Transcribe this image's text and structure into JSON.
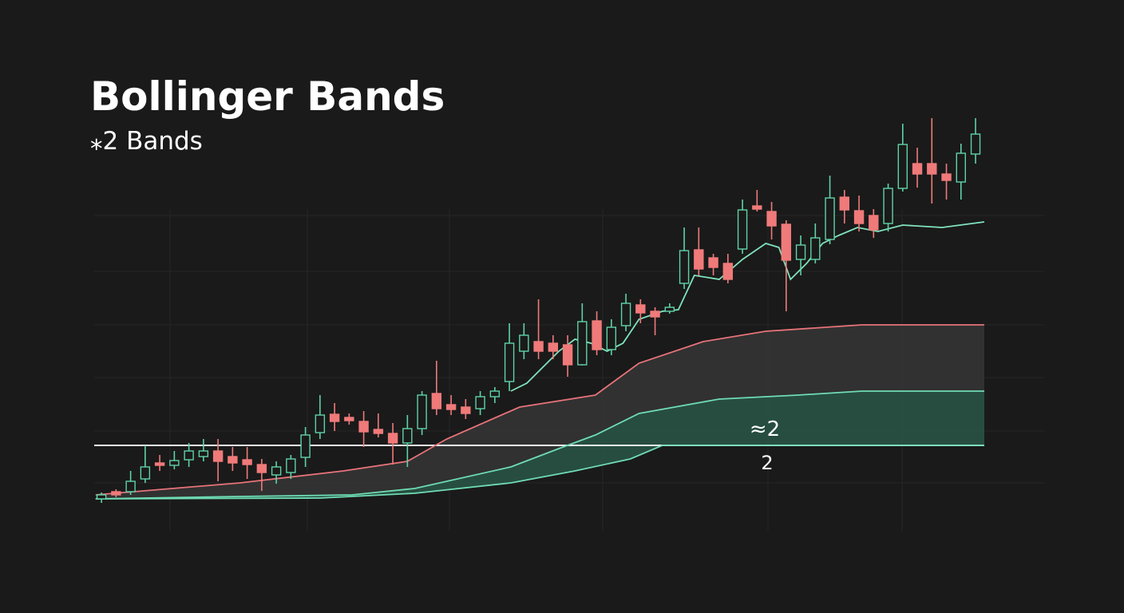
{
  "chart_data": {
    "type": "candlestick",
    "title": "Bollinger Bands",
    "subtitle": "⁎2 Bands",
    "xlim": [
      -0.5,
      60.6
    ],
    "ylim": [
      0,
      520
    ],
    "grid": true,
    "up_color": "#5fd3a8",
    "down_color": "#f07a7a",
    "open": [
      35,
      44,
      44,
      60,
      80,
      77,
      84,
      88,
      95,
      88,
      84,
      78,
      65,
      68,
      87,
      118,
      141,
      137,
      132,
      122,
      117,
      105,
      123,
      167,
      153,
      150,
      148,
      163,
      182,
      220,
      232,
      230,
      228,
      203,
      258,
      222,
      252,
      278,
      270,
      270,
      305,
      347,
      337,
      330,
      348,
      402,
      395,
      379,
      335,
      335,
      360,
      413,
      396,
      390,
      380,
      424,
      455,
      455,
      442,
      432,
      467
    ],
    "high": [
      43,
      47,
      70,
      102,
      90,
      95,
      105,
      110,
      110,
      100,
      100,
      85,
      82,
      90,
      125,
      165,
      155,
      142,
      145,
      142,
      130,
      140,
      170,
      208,
      165,
      160,
      170,
      175,
      255,
      255,
      285,
      240,
      240,
      280,
      270,
      260,
      292,
      285,
      275,
      280,
      375,
      375,
      342,
      342,
      410,
      422,
      407,
      384,
      365,
      380,
      440,
      422,
      415,
      398,
      430,
      505,
      475,
      512,
      455,
      480,
      512
    ],
    "low": [
      30,
      37,
      40,
      55,
      70,
      72,
      75,
      82,
      57,
      70,
      60,
      45,
      54,
      60,
      75,
      110,
      120,
      128,
      100,
      112,
      78,
      75,
      115,
      140,
      140,
      135,
      140,
      155,
      170,
      210,
      210,
      210,
      188,
      202,
      215,
      215,
      245,
      255,
      240,
      267,
      298,
      315,
      315,
      305,
      342,
      395,
      360,
      270,
      315,
      330,
      354,
      380,
      370,
      362,
      370,
      420,
      425,
      405,
      410,
      410,
      455
    ],
    "close": [
      40,
      40,
      57,
      75,
      77,
      83,
      95,
      95,
      82,
      80,
      78,
      68,
      75,
      85,
      115,
      140,
      132,
      133,
      119,
      117,
      105,
      123,
      165,
      148,
      147,
      142,
      163,
      170,
      230,
      240,
      220,
      220,
      203,
      257,
      222,
      250,
      280,
      268,
      263,
      275,
      346,
      323,
      325,
      310,
      397,
      398,
      377,
      334,
      353,
      362,
      412,
      397,
      380,
      372,
      424,
      479,
      442,
      442,
      434,
      468,
      492
    ],
    "lines": [
      {
        "color": "#e8737a",
        "x": [
          -0.4,
          9.5,
          16.6,
          21,
          23.7,
          28.7,
          33.9,
          36.9,
          41.3,
          45.6,
          52.2,
          60.6
        ],
        "values": [
          40,
          55,
          70,
          82,
          110,
          150,
          165,
          205,
          232,
          245,
          253,
          253
        ]
      },
      {
        "color": "#6fdcb4",
        "x": [
          -0.4,
          9.5,
          17.2,
          21.5,
          28.1,
          31.4,
          33.9,
          36.9,
          42.4,
          47.8,
          52.2,
          60.6
        ],
        "values": [
          35,
          38,
          40,
          48,
          75,
          98,
          115,
          142,
          160,
          165,
          170,
          170
        ]
      },
      {
        "color": "#6fdcb4",
        "x": [
          -0.4,
          15,
          21.5,
          28.1,
          32.5,
          36.3,
          38.5,
          60.6
        ],
        "values": [
          35,
          36,
          42,
          55,
          70,
          85,
          102,
          102
        ]
      },
      {
        "color": "#7fe3bd",
        "x": [
          28.1,
          29.2,
          31.4,
          32.5,
          33.6,
          34.7,
          35.8,
          36.9,
          38.5,
          39.6,
          40.7,
          42.4,
          44,
          45.6,
          46.5,
          47.3,
          48.4,
          49.5,
          50.6,
          51.9,
          53.3,
          55,
          57.7,
          60.6
        ],
        "values": [
          170,
          180,
          220,
          235,
          230,
          220,
          230,
          260,
          270,
          272,
          315,
          310,
          335,
          355,
          350,
          310,
          330,
          355,
          365,
          375,
          370,
          378,
          375,
          382
        ]
      }
    ],
    "reference": {
      "value": 102,
      "label_above": "≈2",
      "label_below": "2"
    }
  }
}
